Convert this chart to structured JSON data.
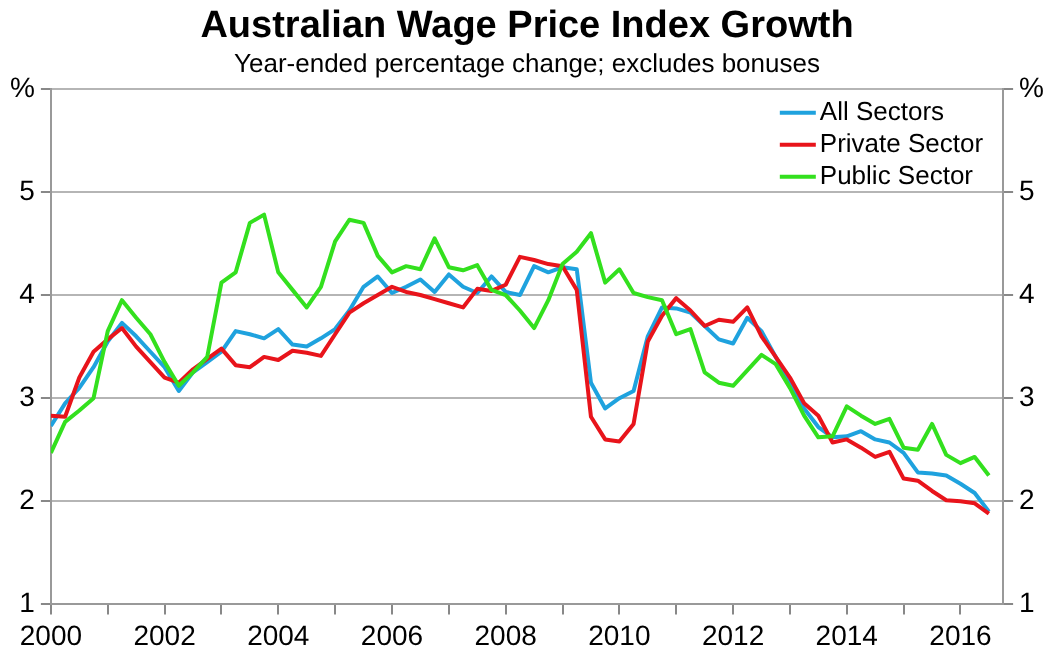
{
  "chart_data": {
    "type": "line",
    "title": "Australian Wage Price Index Growth",
    "subtitle": "Year-ended percentage change; excludes bonuses",
    "x": [
      2000,
      2000.25,
      2000.5,
      2000.75,
      2001,
      2001.25,
      2001.5,
      2001.75,
      2002,
      2002.25,
      2002.5,
      2002.75,
      2003,
      2003.25,
      2003.5,
      2003.75,
      2004,
      2004.25,
      2004.5,
      2004.75,
      2005,
      2005.25,
      2005.5,
      2005.75,
      2006,
      2006.25,
      2006.5,
      2006.75,
      2007,
      2007.25,
      2007.5,
      2007.75,
      2008,
      2008.25,
      2008.5,
      2008.75,
      2009,
      2009.25,
      2009.5,
      2009.75,
      2010,
      2010.25,
      2010.5,
      2010.75,
      2011,
      2011.25,
      2011.5,
      2011.75,
      2012,
      2012.25,
      2012.5,
      2012.75,
      2013,
      2013.25,
      2013.5,
      2013.75,
      2014,
      2014.25,
      2014.5,
      2014.75,
      2015,
      2015.25,
      2015.5,
      2015.75,
      2016,
      2016.25,
      2016.5
    ],
    "series": [
      {
        "name": "All Sectors",
        "color": "#1fa2de",
        "values": [
          2.73,
          2.95,
          3.1,
          3.3,
          3.55,
          3.73,
          3.6,
          3.45,
          3.3,
          3.07,
          3.25,
          3.35,
          3.45,
          3.65,
          3.62,
          3.58,
          3.67,
          3.52,
          3.5,
          3.58,
          3.67,
          3.85,
          4.08,
          4.18,
          4.02,
          4.08,
          4.15,
          4.03,
          4.2,
          4.08,
          4.02,
          4.18,
          4.03,
          4.0,
          4.28,
          4.22,
          4.27,
          4.25,
          3.15,
          2.9,
          3.0,
          3.07,
          3.6,
          3.88,
          3.87,
          3.83,
          3.7,
          3.57,
          3.53,
          3.78,
          3.65,
          3.4,
          3.15,
          2.9,
          2.72,
          2.62,
          2.63,
          2.68,
          2.6,
          2.57,
          2.47,
          2.28,
          2.27,
          2.25,
          2.17,
          2.08,
          1.9
        ]
      },
      {
        "name": "Private Sector",
        "color": "#e8141b",
        "values": [
          2.83,
          2.82,
          3.2,
          3.45,
          3.57,
          3.68,
          3.5,
          3.35,
          3.2,
          3.15,
          3.28,
          3.38,
          3.48,
          3.32,
          3.3,
          3.4,
          3.37,
          3.46,
          3.44,
          3.41,
          3.62,
          3.83,
          3.92,
          4.0,
          4.08,
          4.03,
          4.0,
          3.96,
          3.92,
          3.88,
          4.06,
          4.04,
          4.1,
          4.37,
          4.34,
          4.3,
          4.28,
          4.05,
          2.82,
          2.6,
          2.58,
          2.75,
          3.55,
          3.8,
          3.97,
          3.85,
          3.7,
          3.76,
          3.74,
          3.88,
          3.6,
          3.4,
          3.2,
          2.95,
          2.83,
          2.57,
          2.6,
          2.52,
          2.43,
          2.48,
          2.22,
          2.2,
          2.1,
          2.01,
          2.0,
          1.98,
          1.88
        ]
      },
      {
        "name": "Public Sector",
        "color": "#33e01e",
        "values": [
          2.47,
          2.77,
          2.88,
          3.0,
          3.65,
          3.95,
          3.78,
          3.62,
          3.35,
          3.12,
          3.25,
          3.4,
          4.12,
          4.22,
          4.7,
          4.78,
          4.22,
          4.05,
          3.88,
          4.08,
          4.52,
          4.73,
          4.7,
          4.38,
          4.22,
          4.28,
          4.25,
          4.55,
          4.27,
          4.24,
          4.29,
          4.05,
          4.0,
          3.85,
          3.68,
          3.95,
          4.3,
          4.42,
          4.6,
          4.12,
          4.25,
          4.02,
          3.98,
          3.95,
          3.62,
          3.67,
          3.25,
          3.15,
          3.12,
          3.27,
          3.42,
          3.33,
          3.1,
          2.83,
          2.62,
          2.63,
          2.92,
          2.83,
          2.75,
          2.8,
          2.52,
          2.5,
          2.75,
          2.45,
          2.37,
          2.43,
          2.25
        ]
      }
    ],
    "xlim": [
      2000,
      2016.75
    ],
    "xticks": [
      2000,
      {
        "value": 2001,
        "label": null
      },
      2002,
      {
        "value": 2003,
        "label": null
      },
      2004,
      {
        "value": 2005,
        "label": null
      },
      2006,
      {
        "value": 2007,
        "label": null
      },
      2008,
      {
        "value": 2009,
        "label": null
      },
      2010,
      {
        "value": 2011,
        "label": null
      },
      2012,
      {
        "value": 2013,
        "label": null
      },
      2014,
      {
        "value": 2015,
        "label": null
      },
      2016
    ],
    "ylim": [
      1,
      6
    ],
    "yticks": [
      1,
      2,
      3,
      4,
      5,
      {
        "value": 6,
        "label": "%"
      }
    ],
    "y2lim": [
      1,
      6
    ],
    "y2ticks": [
      1,
      2,
      3,
      4,
      5,
      {
        "value": 6,
        "label": "%"
      }
    ],
    "grid": "y",
    "legend": "top right",
    "marker": "none",
    "line_style": "solid"
  }
}
